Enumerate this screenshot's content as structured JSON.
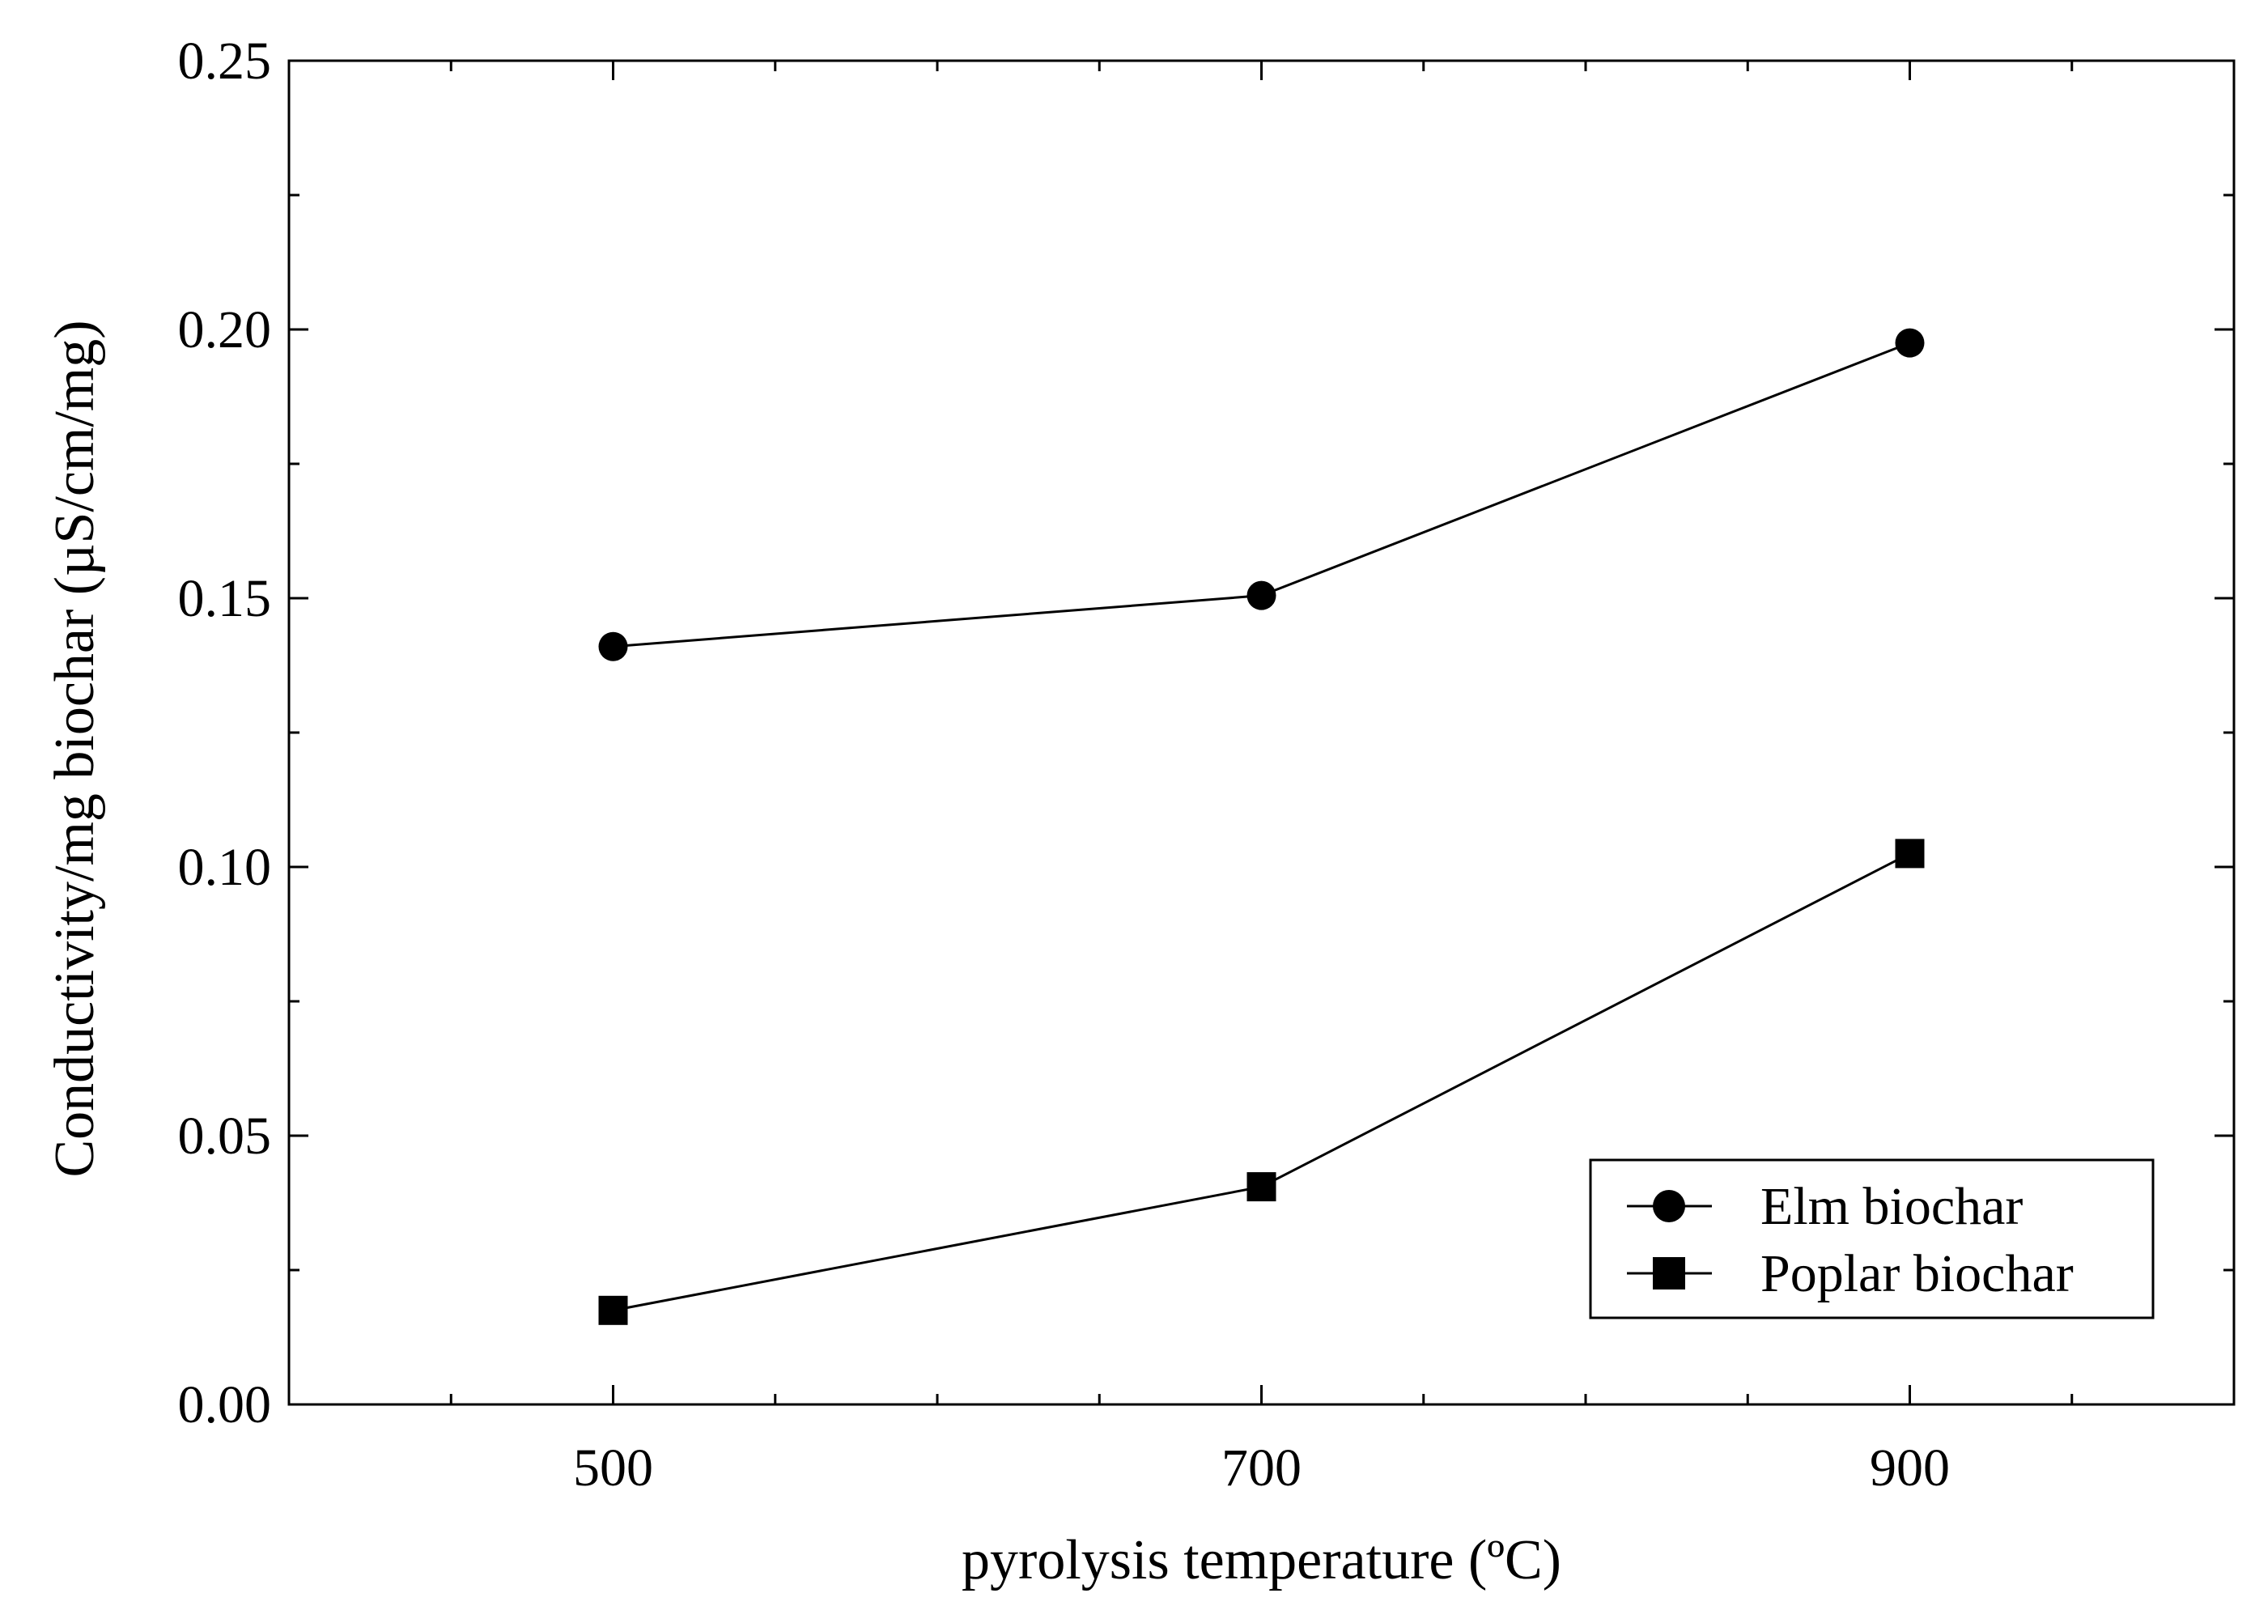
{
  "chart_data": {
    "type": "line",
    "title": "",
    "xlabel": "pyrolysis temperature (ºC)",
    "ylabel": "Conductivity/mg biochar (µS/cm/mg)",
    "x": [
      500,
      700,
      900
    ],
    "xlim": [
      400,
      1000
    ],
    "ylim": [
      0,
      0.25
    ],
    "x_ticks": [
      500,
      700,
      900
    ],
    "x_tick_labels": [
      "500",
      "700",
      "900"
    ],
    "x_minor_step": 50,
    "y_ticks": [
      0.0,
      0.05,
      0.1,
      0.15,
      0.2,
      0.25
    ],
    "y_tick_labels": [
      "0.00",
      "0.05",
      "0.10",
      "0.15",
      "0.20",
      "0.25"
    ],
    "y_minor_step": 0.025,
    "grid": false,
    "legend_position": "bottom-right",
    "series": [
      {
        "name": "Elm biochar",
        "marker": "circle",
        "color": "#000000",
        "values": [
          0.141,
          0.1505,
          0.1975
        ]
      },
      {
        "name": "Poplar biochar",
        "marker": "square",
        "color": "#000000",
        "values": [
          0.0175,
          0.0405,
          0.1025
        ]
      }
    ]
  }
}
